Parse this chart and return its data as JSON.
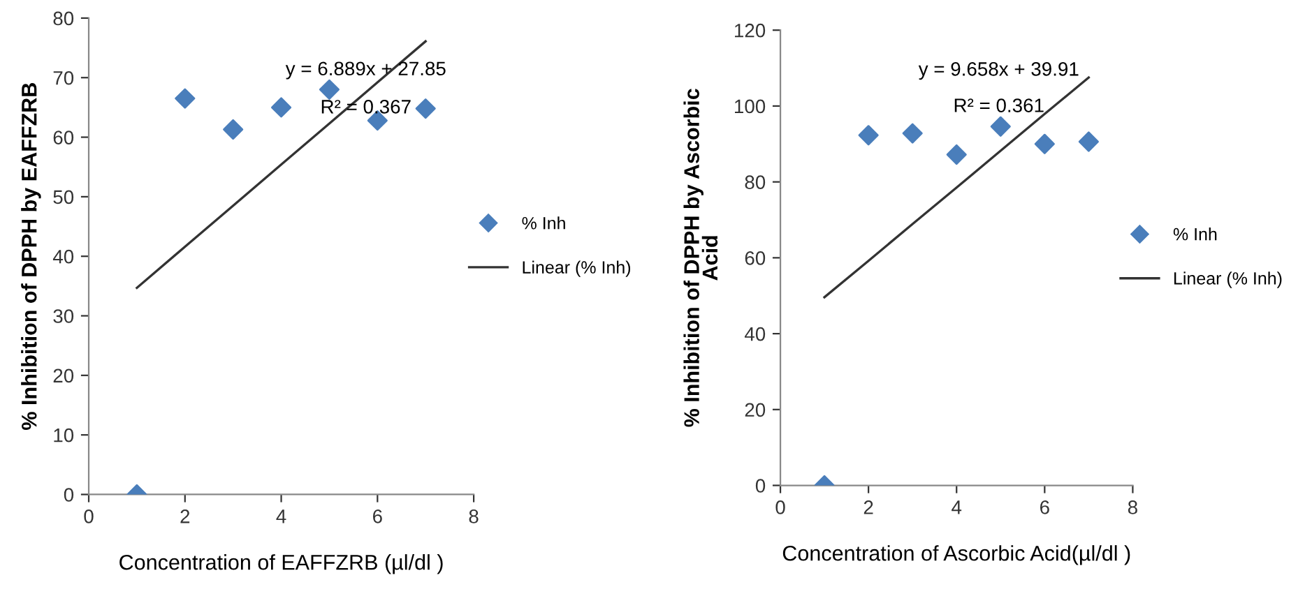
{
  "chart_data": [
    {
      "type": "scatter",
      "xlabel": "Concentration of EAFFZRB (µl/dl )",
      "ylabel": "% Inhibition of DPPH by EAFFZRB",
      "x": [
        1,
        2,
        3,
        4,
        5,
        6,
        7
      ],
      "xlim": [
        0,
        8
      ],
      "xticks": [
        0,
        2,
        4,
        6,
        8
      ],
      "ylim": [
        0,
        80
      ],
      "yticks": [
        0,
        10,
        20,
        30,
        40,
        50,
        60,
        70,
        80
      ],
      "series": [
        {
          "name": "% Inh",
          "color": "#4a7ebb",
          "marker": "diamond",
          "values": [
            0,
            66.5,
            61.3,
            65,
            68,
            62.8,
            64.8
          ]
        },
        {
          "name": "Linear (% Inh)",
          "type": "line",
          "color": "#333333",
          "line_style": "solid",
          "values": [
            34.7,
            41.6,
            48.5,
            55.4,
            62.3,
            69.2,
            76.1
          ]
        }
      ],
      "annotations": [
        "y = 6.889x + 27.85",
        "R² = 0.367"
      ],
      "grid": false,
      "legend": "right"
    },
    {
      "type": "scatter",
      "xlabel": "Concentration of Ascorbic Acid(µl/dl )",
      "ylabel": "% Inhibition of DPPH by Ascorbic\nAcid",
      "x": [
        1,
        2,
        3,
        4,
        5,
        6,
        7
      ],
      "xlim": [
        0,
        8
      ],
      "xticks": [
        0,
        2,
        4,
        6,
        8
      ],
      "ylim": [
        0,
        120
      ],
      "yticks": [
        0,
        20,
        40,
        60,
        80,
        100,
        120
      ],
      "series": [
        {
          "name": "% Inh",
          "color": "#4a7ebb",
          "marker": "diamond",
          "values": [
            0,
            92.3,
            92.8,
            87.2,
            94.6,
            90,
            90.6
          ]
        },
        {
          "name": "Linear (% Inh)",
          "type": "line",
          "color": "#333333",
          "line_style": "solid",
          "values": [
            49.6,
            59.2,
            68.9,
            78.5,
            88.2,
            97.9,
            107.5
          ]
        }
      ],
      "annotations": [
        "y = 9.658x + 39.91",
        "R² = 0.361"
      ],
      "grid": false,
      "legend": "right"
    }
  ]
}
